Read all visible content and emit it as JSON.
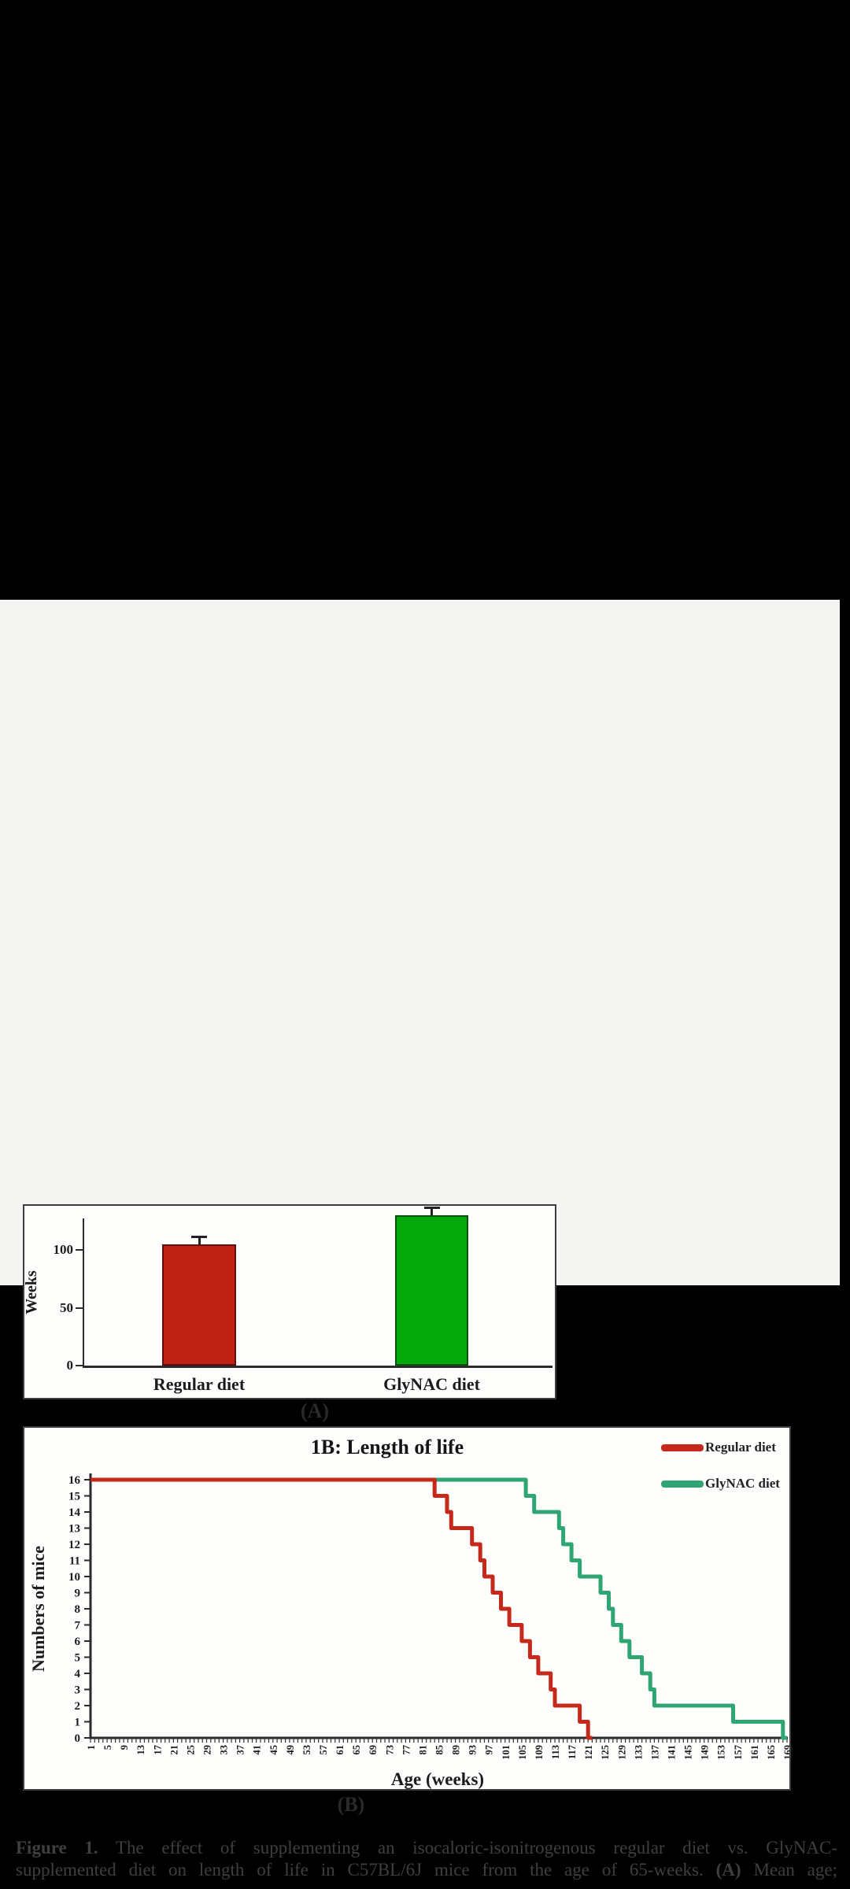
{
  "figure": {
    "panel_a_label": "(A)",
    "panel_b_label": "(B)"
  },
  "chart_data": [
    {
      "type": "bar",
      "panel": "A",
      "title": "",
      "xlabel": "",
      "ylabel": "Weeks",
      "yticks": [
        0,
        50,
        100
      ],
      "ylim": [
        0,
        140
      ],
      "categories": [
        "Regular diet",
        "GlyNAC diet"
      ],
      "values": [
        105,
        130
      ],
      "errors": [
        6,
        6
      ],
      "bar_colors": [
        "#bf2214",
        "#05a80a"
      ],
      "bar_border_colors": [
        "#5f100a",
        "#045206"
      ],
      "grid": false
    },
    {
      "type": "line",
      "panel": "B",
      "title": "1B: Length of life",
      "xlabel": "Age (weeks)",
      "ylabel": "Numbers of mice",
      "xlim": [
        1,
        169
      ],
      "ylim": [
        0,
        16
      ],
      "yticks": [
        16,
        15,
        14,
        13,
        12,
        11,
        10,
        9,
        8,
        7,
        6,
        5,
        4,
        3,
        2,
        1,
        0
      ],
      "xticks": [
        1,
        5,
        9,
        13,
        17,
        21,
        25,
        29,
        33,
        37,
        41,
        45,
        49,
        53,
        57,
        61,
        65,
        69,
        73,
        77,
        81,
        85,
        89,
        93,
        97,
        101,
        105,
        109,
        113,
        117,
        121,
        125,
        129,
        133,
        137,
        141,
        145,
        149,
        153,
        157,
        161,
        165,
        169
      ],
      "grid": false,
      "legend_position": "top-right",
      "series": [
        {
          "name": "Regular diet",
          "color": "#c5291b",
          "steps": [
            [
              1,
              16
            ],
            [
              84,
              16
            ],
            [
              84,
              15
            ],
            [
              87,
              15
            ],
            [
              87,
              14
            ],
            [
              88,
              14
            ],
            [
              88,
              13
            ],
            [
              93,
              13
            ],
            [
              93,
              12
            ],
            [
              95,
              12
            ],
            [
              95,
              11
            ],
            [
              96,
              11
            ],
            [
              96,
              10
            ],
            [
              98,
              10
            ],
            [
              98,
              9
            ],
            [
              100,
              9
            ],
            [
              100,
              8
            ],
            [
              102,
              8
            ],
            [
              102,
              7
            ],
            [
              105,
              7
            ],
            [
              105,
              6
            ],
            [
              107,
              6
            ],
            [
              107,
              5
            ],
            [
              109,
              5
            ],
            [
              109,
              4
            ],
            [
              112,
              4
            ],
            [
              112,
              3
            ],
            [
              113,
              3
            ],
            [
              113,
              2
            ],
            [
              119,
              2
            ],
            [
              119,
              1
            ],
            [
              121,
              1
            ],
            [
              121,
              0
            ],
            [
              122,
              0
            ]
          ]
        },
        {
          "name": "GlyNAC diet",
          "color": "#2ea573",
          "steps": [
            [
              1,
              16
            ],
            [
              106,
              16
            ],
            [
              106,
              15
            ],
            [
              108,
              15
            ],
            [
              108,
              14
            ],
            [
              114,
              14
            ],
            [
              114,
              13
            ],
            [
              115,
              13
            ],
            [
              115,
              12
            ],
            [
              117,
              12
            ],
            [
              117,
              11
            ],
            [
              119,
              11
            ],
            [
              119,
              10
            ],
            [
              124,
              10
            ],
            [
              124,
              9
            ],
            [
              126,
              9
            ],
            [
              126,
              8
            ],
            [
              127,
              8
            ],
            [
              127,
              7
            ],
            [
              129,
              7
            ],
            [
              129,
              6
            ],
            [
              131,
              6
            ],
            [
              131,
              5
            ],
            [
              134,
              5
            ],
            [
              134,
              4
            ],
            [
              136,
              4
            ],
            [
              136,
              3
            ],
            [
              137,
              3
            ],
            [
              137,
              2
            ],
            [
              156,
              2
            ],
            [
              156,
              1
            ],
            [
              168,
              1
            ],
            [
              168,
              0
            ],
            [
              169,
              0
            ]
          ]
        }
      ]
    }
  ],
  "caption": {
    "bold_prefix": "Figure 1.",
    "line1_rest": "  The effect of supplementing an isocaloric-isonitrogenous regular diet vs.  GlyNAC-",
    "line2_pre": "supplemented diet on length of life in C57BL/6J mice from the age of 65-weeks.  ",
    "line2_bold": "(A)",
    "line2_post": " Mean age;"
  },
  "colors": {
    "background": "#000000",
    "paper": "#f4f4f2",
    "panel_border": "#3c3c3c",
    "axis": "#2b2b2b",
    "chart_text": "#1c1c1c",
    "caption_text": "#3f3f3f"
  }
}
